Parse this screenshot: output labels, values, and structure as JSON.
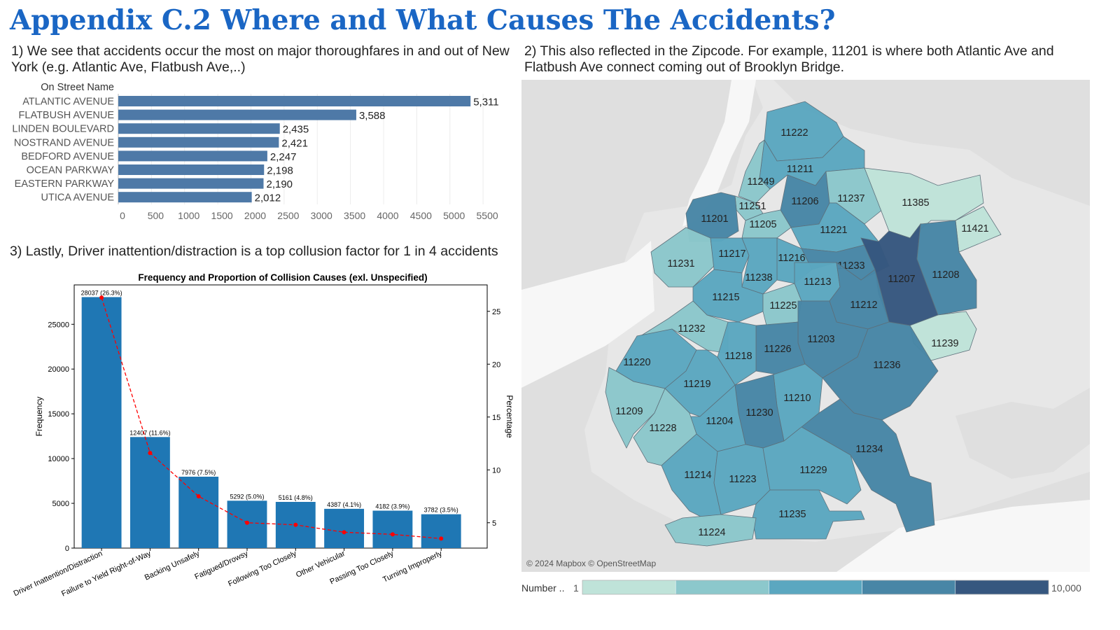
{
  "page": {
    "title": "Appendix C.2 Where and What Causes The Accidents?",
    "desc1": "1) We see that accidents occur the most on major thoroughfares in and out of New York (e.g. Atlantic Ave, Flatbush Ave,..)",
    "desc2": "2) This also reflected in the Zipcode. For example, 11201 is where both Atlantic Ave and Flatbush Ave connect coming out of Brooklyn Bridge.",
    "desc3": "3) Lastly, Driver inattention/distraction is a top collusion factor for 1 in 4 accidents"
  },
  "colors": {
    "title": "#1a66c4",
    "tableau_bar": "#4e79a7",
    "pareto_bar": "#1f77b4",
    "pareto_line": "#ff0000",
    "map_scale": [
      "#bfe3d9",
      "#8cc8cc",
      "#5ba7c0",
      "#4886a6",
      "#36577f"
    ],
    "map_background": "#e7e7e7",
    "water": "#f7f7f7"
  },
  "chart_data": [
    {
      "type": "bar",
      "orientation": "horizontal",
      "header": "On Street Name",
      "categories": [
        "ATLANTIC AVENUE",
        "FLATBUSH AVENUE",
        "LINDEN BOULEVARD",
        "NOSTRAND AVENUE",
        "BEDFORD AVENUE",
        "OCEAN PARKWAY",
        "EASTERN PARKWAY",
        "UTICA AVENUE"
      ],
      "values": [
        5311,
        3588,
        2435,
        2421,
        2247,
        2198,
        2190,
        2012
      ],
      "value_labels": [
        "5,311",
        "3,588",
        "2,435",
        "2,421",
        "2,247",
        "2,198",
        "2,190",
        "2,012"
      ],
      "xticks": [
        "0",
        "500",
        "1000",
        "1500",
        "2000",
        "2500",
        "3000",
        "3500",
        "4000",
        "4500",
        "5000",
        "5500"
      ],
      "xlim": [
        0,
        5900
      ],
      "grid": "vertical"
    },
    {
      "type": "bar",
      "title": "Frequency and Proportion of Collision Causes (exl. Unspecified)",
      "ylabel": "Frequency",
      "y2label": "Percentage",
      "categories": [
        "Driver Inattention/Distraction",
        "Failure to Yield Right-of-Way",
        "Backing Unsafely",
        "Fatigued/Drowsy",
        "Following Too Closely",
        "Other Vehicular",
        "Passing Too Closely",
        "Turning Improperly"
      ],
      "values": [
        28037,
        12407,
        7976,
        5292,
        5161,
        4387,
        4182,
        3782
      ],
      "percentages": [
        26.3,
        11.6,
        7.5,
        5.0,
        4.8,
        4.1,
        3.9,
        3.5
      ],
      "bar_labels": [
        "28037 (26.3%)",
        "12407 (11.6%)",
        "7976 (7.5%)",
        "5292 (5.0%)",
        "5161 (4.8%)",
        "4387 (4.1%)",
        "4182 (3.9%)",
        "3782 (3.5%)"
      ],
      "ylim": [
        0,
        29400
      ],
      "y2lim": [
        2.6,
        27.5
      ],
      "yticks": [
        0,
        5000,
        10000,
        15000,
        20000,
        25000
      ],
      "y2ticks": [
        5,
        10,
        15,
        20,
        25
      ],
      "line_style": "dashed",
      "grid": false
    }
  ],
  "map": {
    "attribution": "© 2024 Mapbox © OpenStreetMap",
    "legend_label": "Number ..",
    "legend_min": "1",
    "legend_max": "10,000",
    "zipcodes": [
      {
        "zip": "11222",
        "level": 2
      },
      {
        "zip": "11211",
        "level": 2
      },
      {
        "zip": "11249",
        "level": 1
      },
      {
        "zip": "11206",
        "level": 3
      },
      {
        "zip": "11237",
        "level": 1
      },
      {
        "zip": "11385",
        "level": 0
      },
      {
        "zip": "11251",
        "level": 1
      },
      {
        "zip": "11201",
        "level": 3
      },
      {
        "zip": "11205",
        "level": 1
      },
      {
        "zip": "11221",
        "level": 2
      },
      {
        "zip": "11421",
        "level": 0
      },
      {
        "zip": "11231",
        "level": 1
      },
      {
        "zip": "11217",
        "level": 2
      },
      {
        "zip": "11216",
        "level": 2
      },
      {
        "zip": "11233",
        "level": 3
      },
      {
        "zip": "11207",
        "level": 4
      },
      {
        "zip": "11208",
        "level": 3
      },
      {
        "zip": "11238",
        "level": 2
      },
      {
        "zip": "11213",
        "level": 2
      },
      {
        "zip": "11215",
        "level": 2
      },
      {
        "zip": "11225",
        "level": 1
      },
      {
        "zip": "11212",
        "level": 3
      },
      {
        "zip": "11232",
        "level": 1
      },
      {
        "zip": "11203",
        "level": 3
      },
      {
        "zip": "11239",
        "level": 0
      },
      {
        "zip": "11226",
        "level": 3
      },
      {
        "zip": "11218",
        "level": 2
      },
      {
        "zip": "11220",
        "level": 2
      },
      {
        "zip": "11236",
        "level": 3
      },
      {
        "zip": "11219",
        "level": 2
      },
      {
        "zip": "11210",
        "level": 2
      },
      {
        "zip": "11209",
        "level": 1
      },
      {
        "zip": "11230",
        "level": 3
      },
      {
        "zip": "11204",
        "level": 2
      },
      {
        "zip": "11228",
        "level": 1
      },
      {
        "zip": "11234",
        "level": 3
      },
      {
        "zip": "11214",
        "level": 2
      },
      {
        "zip": "11223",
        "level": 2
      },
      {
        "zip": "11229",
        "level": 2
      },
      {
        "zip": "11235",
        "level": 2
      },
      {
        "zip": "11224",
        "level": 1
      }
    ]
  }
}
